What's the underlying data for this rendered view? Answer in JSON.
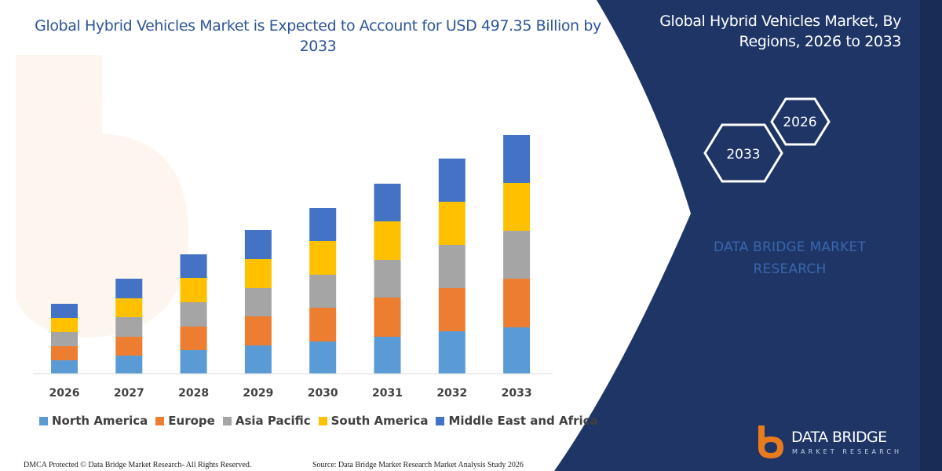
{
  "chart_data": {
    "type": "bar",
    "stacked": true,
    "title": "Global Hybrid Vehicles Market is Expected to Account for USD 497.35 Billion by 2033",
    "categories": [
      "2026",
      "2027",
      "2028",
      "2029",
      "2030",
      "2031",
      "2032",
      "2033"
    ],
    "series": [
      {
        "name": "North America",
        "color": "#5b9bd5",
        "values": [
          17,
          23,
          30,
          36,
          41,
          47,
          54,
          59
        ]
      },
      {
        "name": "Europe",
        "color": "#ed7d31",
        "values": [
          18,
          24,
          30,
          37,
          43,
          50,
          55,
          62
        ]
      },
      {
        "name": "Asia Pacific",
        "color": "#a5a5a5",
        "values": [
          18,
          25,
          31,
          36,
          42,
          48,
          55,
          61
        ]
      },
      {
        "name": "South America",
        "color": "#ffc000",
        "values": [
          18,
          24,
          31,
          37,
          43,
          49,
          55,
          61
        ]
      },
      {
        "name": "Middle East and Africa",
        "color": "#4472c4",
        "values": [
          18,
          25,
          30,
          37,
          42,
          48,
          55,
          61
        ]
      }
    ],
    "xlabel": "",
    "ylabel": "",
    "legend": "bottom",
    "grid": false
  },
  "panel": {
    "title": "Global Hybrid Vehicles Market, By Regions, 2026 to 2033",
    "hexagons": [
      "2026",
      "2033"
    ],
    "brand_line1": "DATA BRIDGE MARKET",
    "brand_line2": "RESEARCH",
    "background_color": "#1e3566"
  },
  "logo": {
    "name_line1": "DATA BRIDGE",
    "name_line2": "MARKET RESEARCH",
    "accent_color": "#e87b1e"
  },
  "footer": {
    "left": "DMCA Protected © Data Bridge Market Research-  All Rights Reserved.",
    "right": "Source:  Data Bridge Market Research  Market Analysis Study 2026"
  }
}
